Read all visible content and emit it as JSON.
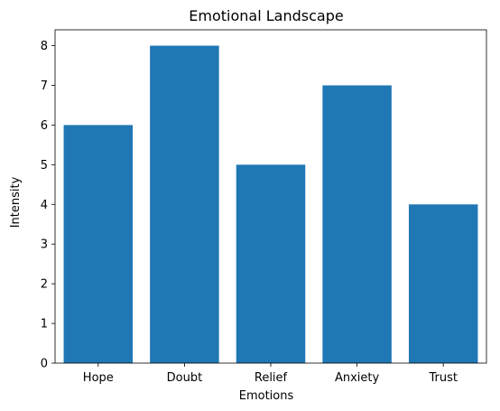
{
  "chart_data": {
    "type": "bar",
    "title": "Emotional Landscape",
    "xlabel": "Emotions",
    "ylabel": "Intensity",
    "categories": [
      "Hope",
      "Doubt",
      "Relief",
      "Anxiety",
      "Trust"
    ],
    "values": [
      6,
      8,
      5,
      7,
      4
    ],
    "ylim": [
      0,
      8.4
    ],
    "yticks": [
      0,
      1,
      2,
      3,
      4,
      5,
      6,
      7,
      8
    ],
    "bar_color": "#1f77b4",
    "grid": false,
    "legend": "none"
  }
}
